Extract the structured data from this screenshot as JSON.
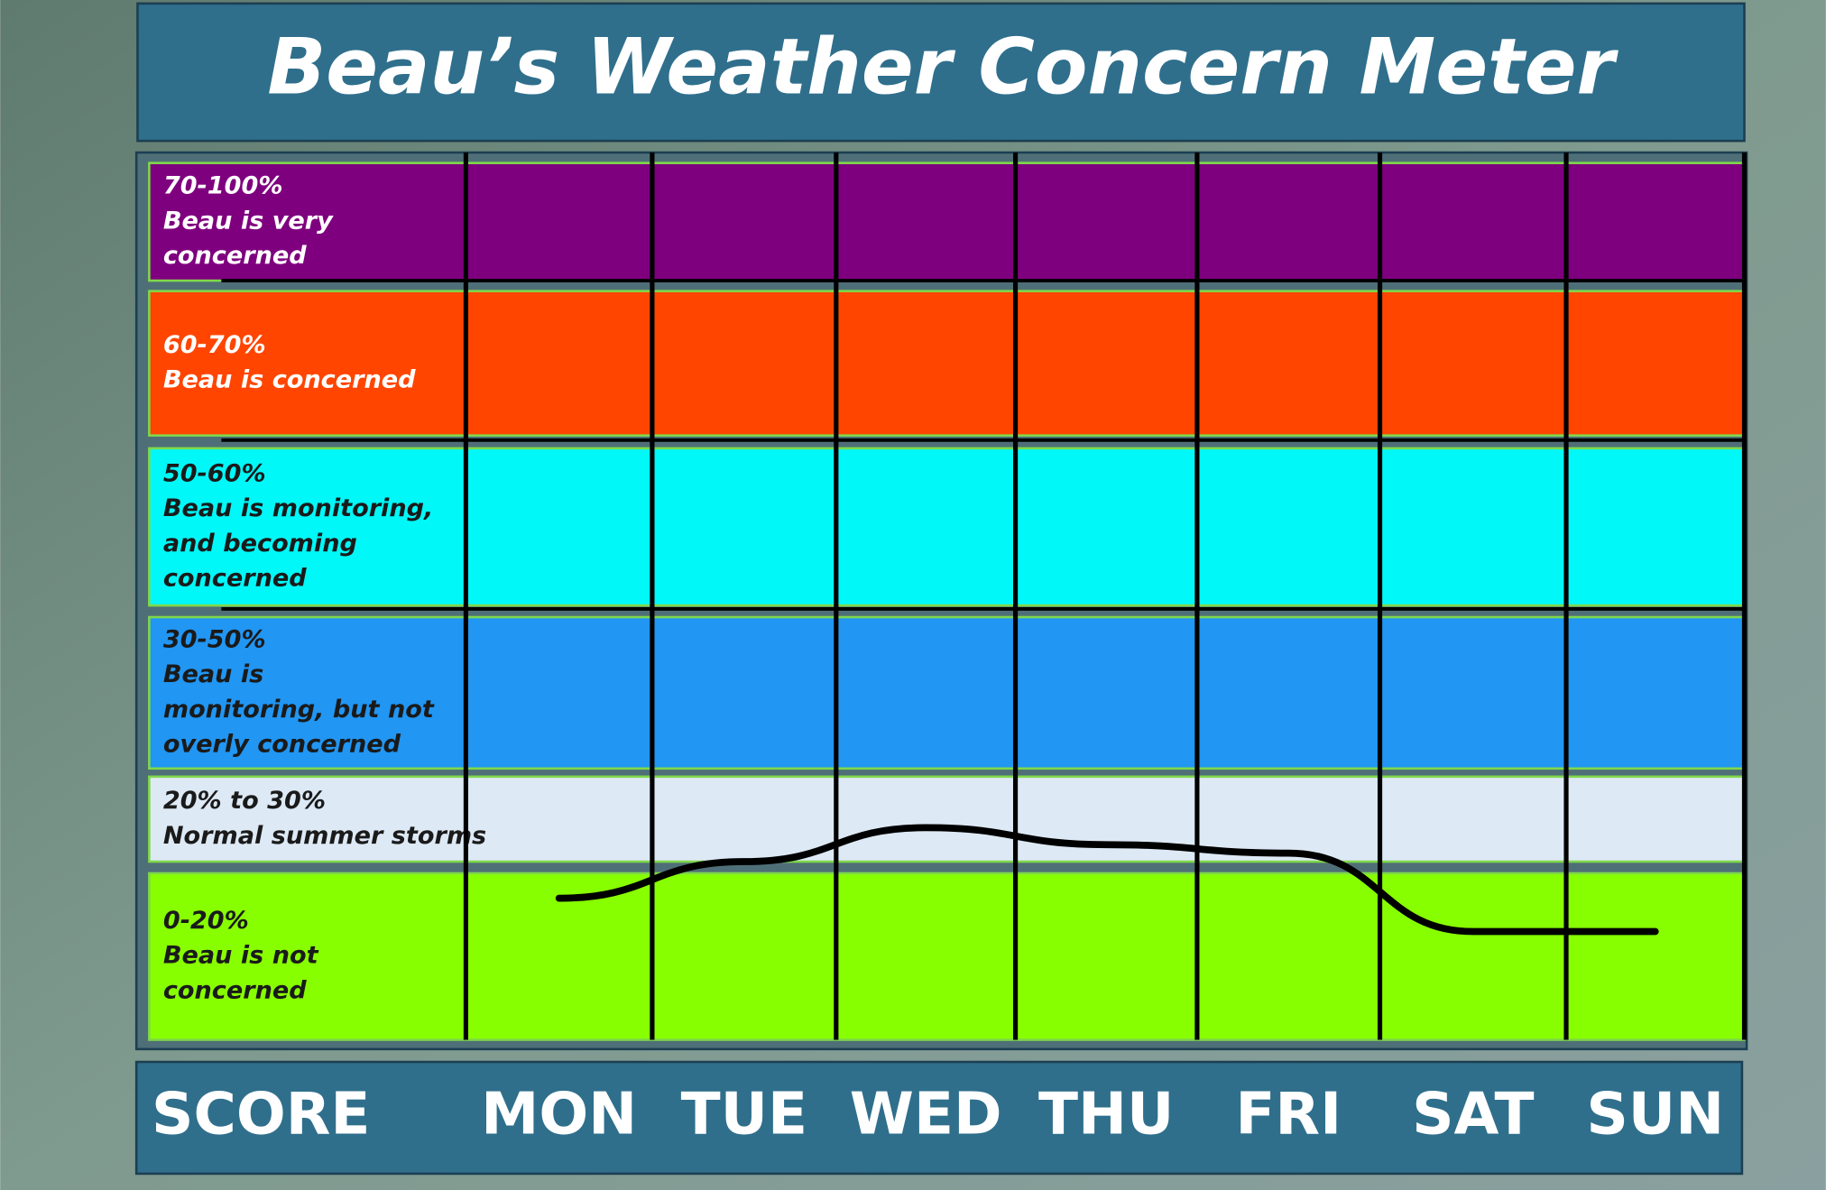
{
  "chart_data": {
    "type": "line",
    "title": "Beau’s Weather Concern Meter",
    "score_label": "SCORE",
    "categories": [
      "MON",
      "TUE",
      "WED",
      "THU",
      "FRI",
      "SAT",
      "SUN"
    ],
    "values": [
      17,
      20,
      24,
      22,
      21,
      13,
      13
    ],
    "line_color": "#000000",
    "bands": [
      {
        "label": "70-100%",
        "lines": [
          "Beau is very",
          "concerned"
        ],
        "from": 70,
        "to": 100,
        "color": "#7f007f",
        "text_color": "#ffffff"
      },
      {
        "label": "60-70%",
        "lines": [
          "Beau is concerned"
        ],
        "from": 60,
        "to": 70,
        "color": "#ff4500",
        "text_color": "#ffffff"
      },
      {
        "label": "50-60%",
        "lines": [
          "Beau is monitoring,",
          "and becoming",
          "concerned"
        ],
        "from": 50,
        "to": 60,
        "color": "#00f8f8",
        "text_color": "#1a1a1a"
      },
      {
        "label": "30-50%",
        "lines": [
          "Beau is",
          "monitoring, but  not",
          "overly  concerned"
        ],
        "from": 30,
        "to": 50,
        "color": "#2196f3",
        "text_color": "#1a1a1a"
      },
      {
        "label": "20% to 30%",
        "lines": [
          "Normal summer storms"
        ],
        "from": 20,
        "to": 30,
        "color": "#dde9f5",
        "text_color": "#1a1a1a"
      },
      {
        "label": "0-20%",
        "lines": [
          "Beau is not",
          "concerned"
        ],
        "from": 0,
        "to": 20,
        "color": "#88ff00",
        "text_color": "#1a1a1a"
      }
    ]
  }
}
